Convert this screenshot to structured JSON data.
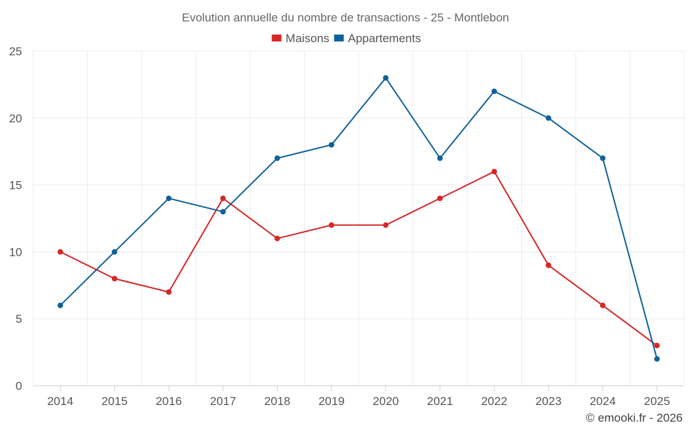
{
  "chart_data": {
    "type": "line",
    "title": "Evolution annuelle du nombre de transactions - 25 - Montlebon",
    "categories": [
      "2014",
      "2015",
      "2016",
      "2017",
      "2018",
      "2019",
      "2020",
      "2021",
      "2022",
      "2023",
      "2024",
      "2025"
    ],
    "series": [
      {
        "name": "Maisons",
        "color": "#d62728",
        "values": [
          10,
          8,
          7,
          14,
          11,
          12,
          12,
          14,
          16,
          9,
          6,
          3
        ]
      },
      {
        "name": "Appartements",
        "color": "#0e6199",
        "values": [
          6,
          10,
          14,
          13,
          17,
          18,
          23,
          17,
          22,
          20,
          17,
          2
        ]
      }
    ],
    "ylim": [
      0,
      25
    ],
    "yticks": [
      0,
      5,
      10,
      15,
      20,
      25
    ],
    "grid": true,
    "legend_position": "top-center",
    "xlabel": "",
    "ylabel": ""
  },
  "credit": "© emooki.fr - 2026"
}
